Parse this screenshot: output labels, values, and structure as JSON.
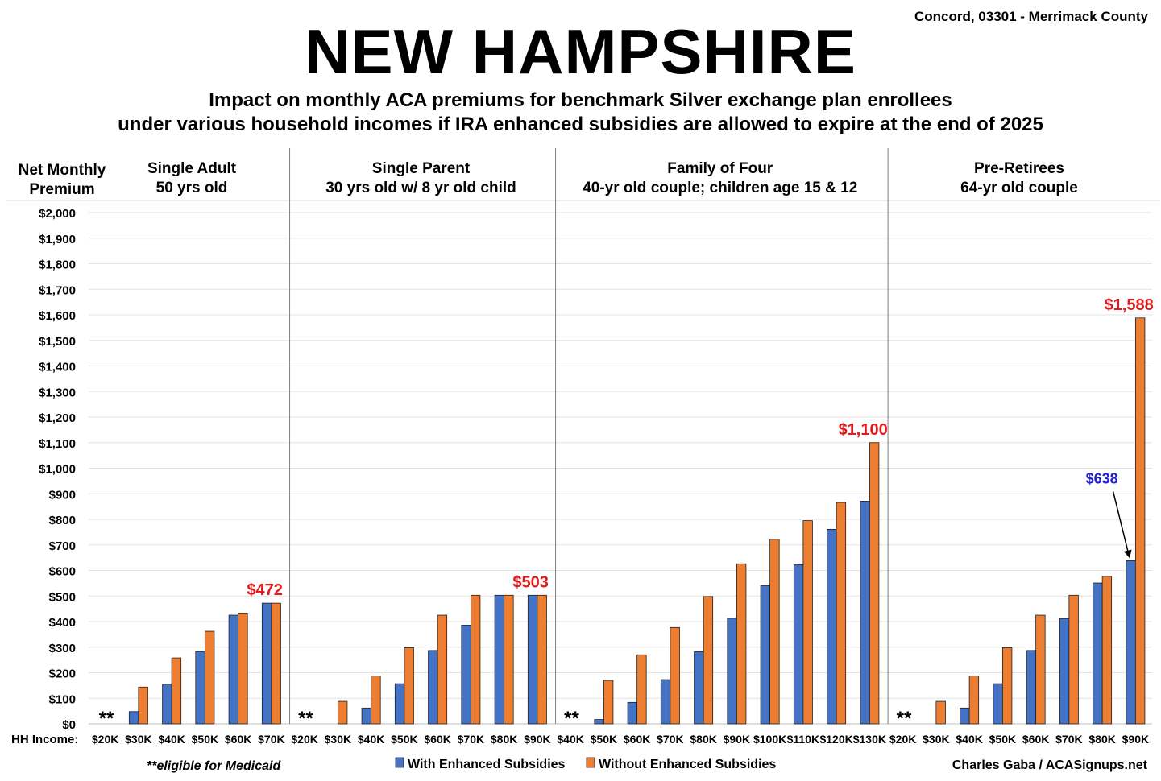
{
  "header": {
    "location": "Concord, 03301 - Merrimack County",
    "title": "NEW HAMPSHIRE",
    "subtitle_line1": "Impact on monthly ACA premiums for benchmark Silver exchange plan enrollees",
    "subtitle_line2": "under various household incomes if IRA enhanced subsidies are allowed to expire at the end of 2025"
  },
  "footer": {
    "medicaid_note": "**eligible for Medicaid",
    "credit": "Charles Gaba / ACASignups.net"
  },
  "colors": {
    "with": "#4472c4",
    "without": "#ed7d31",
    "highlight_red": "#e31a1c",
    "highlight_blue": "#1f1fd1"
  },
  "chart_data": {
    "type": "bar",
    "ylabel": "Net Monthly Premium",
    "xlabel": "HH Income:",
    "ylim": [
      0,
      2000
    ],
    "ytick_step": 100,
    "grid": true,
    "legend_position": "bottom",
    "series": [
      {
        "name": "With Enhanced Subsidies",
        "key": "with"
      },
      {
        "name": "Without Enhanced Subsidies",
        "key": "without"
      }
    ],
    "groups": [
      {
        "title_line1": "Single Adult",
        "title_line2": "50 yrs old",
        "categories": [
          "$20K",
          "$30K",
          "$40K",
          "$50K",
          "$60K",
          "$70K"
        ],
        "with": [
          0,
          48,
          155,
          283,
          425,
          472
        ],
        "without": [
          0,
          144,
          258,
          362,
          433,
          472
        ],
        "medicaid_mark": "**",
        "annotation": {
          "text": "$472",
          "series": "without",
          "index": 5,
          "color": "red"
        }
      },
      {
        "title_line1": "Single Parent",
        "title_line2": "30 yrs old w/ 8 yr old child",
        "categories": [
          "$20K",
          "$30K",
          "$40K",
          "$50K",
          "$60K",
          "$70K",
          "$80K",
          "$90K"
        ],
        "with": [
          0,
          0,
          62,
          157,
          287,
          386,
          503,
          503
        ],
        "without": [
          0,
          88,
          187,
          298,
          425,
          503,
          503,
          503
        ],
        "medicaid_mark": "**",
        "annotation": {
          "text": "$503",
          "series": "without",
          "index": 7,
          "color": "red"
        }
      },
      {
        "title_line1": "Family of Four",
        "title_line2": "40-yr old couple; children age 15 & 12",
        "categories": [
          "$40K",
          "$50K",
          "$60K",
          "$70K",
          "$80K",
          "$90K",
          "$100K",
          "$110K",
          "$120K",
          "$130K"
        ],
        "with": [
          0,
          17,
          84,
          173,
          282,
          413,
          541,
          622,
          761,
          871
        ],
        "without": [
          0,
          170,
          270,
          377,
          498,
          626,
          722,
          795,
          866,
          1100
        ],
        "medicaid_mark": "**",
        "annotation": {
          "text": "$1,100",
          "series": "without",
          "index": 9,
          "color": "red"
        }
      },
      {
        "title_line1": "Pre-Retirees",
        "title_line2": "64-yr old couple",
        "categories": [
          "$20K",
          "$30K",
          "$40K",
          "$50K",
          "$60K",
          "$70K",
          "$80K",
          "$90K"
        ],
        "with": [
          0,
          0,
          62,
          157,
          287,
          411,
          551,
          638
        ],
        "without": [
          0,
          88,
          187,
          298,
          425,
          503,
          577,
          1588
        ],
        "medicaid_mark": "**",
        "annotation": {
          "text": "$1,588",
          "series": "without",
          "index": 7,
          "color": "red"
        },
        "annotation2": {
          "text": "$638",
          "series": "with",
          "index": 7,
          "color": "blue",
          "arrow": true
        }
      }
    ]
  }
}
